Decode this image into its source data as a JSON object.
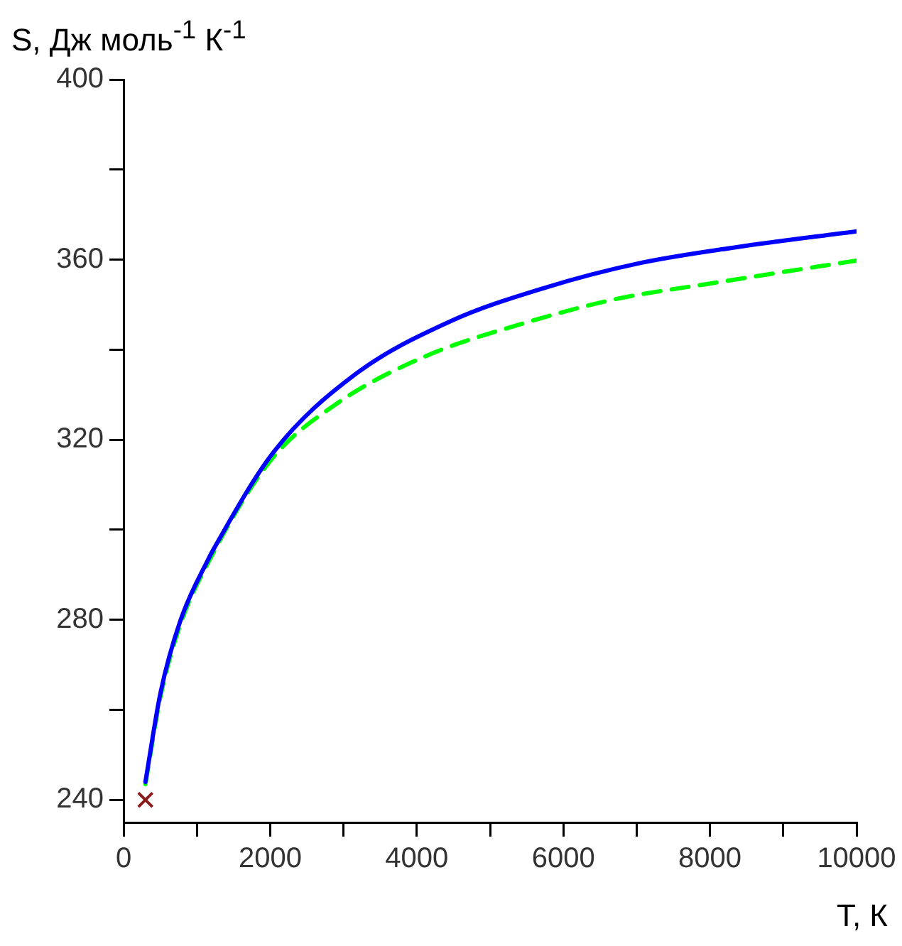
{
  "chart_data": {
    "type": "line",
    "xlabel": "T, К",
    "ylabel": "S, Дж моль$^{-1}$ К$^{-1}$",
    "xlim": [
      0,
      10000
    ],
    "ylim": [
      235,
      400
    ],
    "xticks": [
      0,
      {
        "value": 1000,
        "label": null
      },
      2000,
      {
        "value": 3000,
        "label": null
      },
      4000,
      {
        "value": 5000,
        "label": null
      },
      6000,
      {
        "value": 7000,
        "label": null
      },
      8000,
      {
        "value": 9000,
        "label": null
      },
      10000
    ],
    "yticks": [
      240,
      {
        "value": 260,
        "label": null
      },
      280,
      {
        "value": 300,
        "label": null
      },
      320,
      {
        "value": 340,
        "label": null
      },
      360,
      {
        "value": 380,
        "label": null
      },
      400
    ],
    "grid": false,
    "legend": false,
    "marker": "none",
    "series": [
      {
        "color": "#0000ff",
        "line_style": "solid",
        "x": [
          298,
          504,
          775,
          1163,
          1221,
          2054,
          3159,
          4457,
          5736,
          7035,
          8333,
          10000
        ],
        "values": [
          244,
          263.8,
          279.8,
          293.7,
          295.5,
          317.4,
          334.5,
          346.3,
          353.7,
          359.2,
          362.7,
          366.3
        ]
      },
      {
        "color": "#00ff00",
        "line_style": "dashed",
        "x": [
          298,
          504,
          775,
          1163,
          1996,
          2907,
          4128,
          5426,
          6705,
          8004,
          10000
        ],
        "values": [
          243.5,
          263,
          279,
          293,
          315.2,
          328,
          338.6,
          345.7,
          351.2,
          354.7,
          359.8
        ]
      },
      {
        "type": "scatter",
        "marker": "cross",
        "color": "#8b1a1a",
        "x": [
          298
        ],
        "values": [
          240
        ]
      }
    ]
  }
}
